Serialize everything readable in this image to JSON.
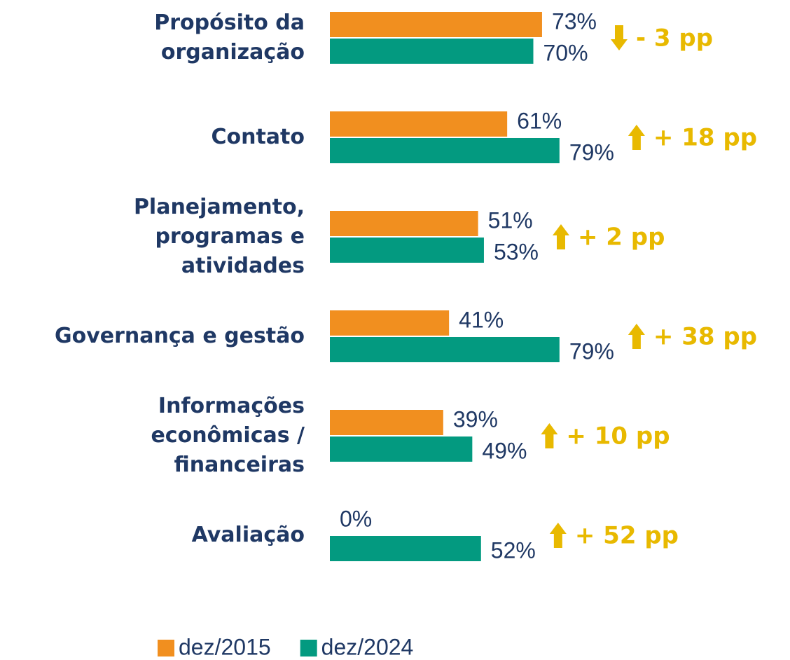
{
  "chart_data": {
    "type": "bar",
    "categories": [
      "Propósito da\norganização",
      "Contato",
      "Planejamento,\nprogramas e\natividades",
      "Governança e gestão",
      "Informações\neconômicas /\nfinanceiras",
      "Avaliação"
    ],
    "series": [
      {
        "name": "dez/2015",
        "color": "#f18f1f",
        "values": [
          73,
          61,
          51,
          41,
          39,
          0
        ],
        "value_labels": [
          "73%",
          "61%",
          "51%",
          "41%",
          "39%",
          "0%"
        ]
      },
      {
        "name": "dez/2024",
        "color": "#039a80",
        "values": [
          70,
          79,
          53,
          79,
          49,
          52
        ],
        "value_labels": [
          "70%",
          "79%",
          "53%",
          "79%",
          "49%",
          "52%"
        ]
      }
    ],
    "annotations": [
      "- 3 pp",
      "+ 18 pp",
      "+ 2 pp",
      "+ 38 pp",
      "+ 10 pp",
      "+ 52 pp"
    ],
    "xlim": [
      0,
      100
    ]
  }
}
